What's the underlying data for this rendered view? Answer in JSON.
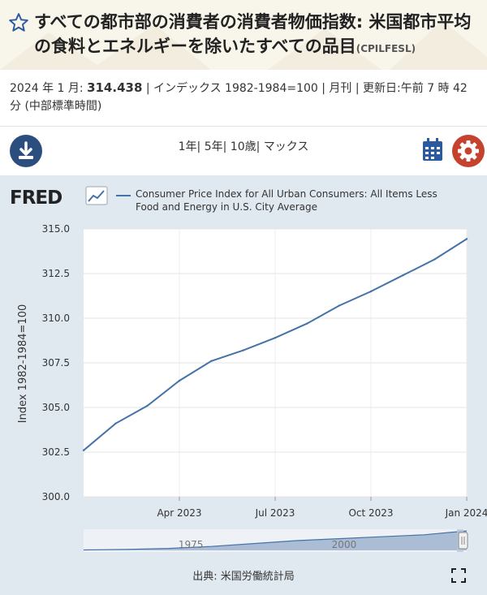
{
  "header": {
    "title": "すべての都市部の消費者の消費者物価指数: 米国都市平均の食料とエネルギーを除いたすべての品目",
    "series_id": "(CPILFESL)"
  },
  "meta": {
    "date_label": "2024 年 1 月:",
    "value": "314.438",
    "rest": "| インデックス 1982-1984=100 | 月刊 | 更新日:午前 7 時 42 分 (中部標準時間)"
  },
  "toolbar": {
    "ranges": [
      "1年",
      "5年",
      "10歳",
      "マックス"
    ],
    "separators": [
      "|",
      "|",
      "|"
    ]
  },
  "legend": {
    "logo": "FRED",
    "series_name": "Consumer Price Index for All Urban Consumers: All Items Less Food and Energy in U.S. City Average"
  },
  "source": "出典: 米国労働統計局",
  "colors": {
    "series": "#4572a7",
    "accent_blue": "#2c4e7f",
    "accent_red": "#c5422f"
  },
  "chart_data": {
    "type": "line",
    "title": "Consumer Price Index for All Urban Consumers: All Items Less Food and Energy in U.S. City Average",
    "ylabel": "Index 1982-1984=100",
    "xlabel": "",
    "ylim": [
      300.0,
      315.0
    ],
    "yticks": [
      "300.0",
      "302.5",
      "305.0",
      "307.5",
      "310.0",
      "312.5",
      "315.0"
    ],
    "ytick_values": [
      300.0,
      302.5,
      305.0,
      307.5,
      310.0,
      312.5,
      315.0
    ],
    "xticks": [
      "Apr 2023",
      "Jul 2023",
      "Oct 2023",
      "Jan 2024"
    ],
    "xtick_index": [
      3,
      6,
      9,
      12
    ],
    "x": [
      "Jan 2023",
      "Feb 2023",
      "Mar 2023",
      "Apr 2023",
      "May 2023",
      "Jun 2023",
      "Jul 2023",
      "Aug 2023",
      "Sep 2023",
      "Oct 2023",
      "Nov 2023",
      "Dec 2023",
      "Jan 2024"
    ],
    "series": [
      {
        "name": "CPILFESL",
        "values": [
          302.6,
          304.1,
          305.1,
          306.5,
          307.6,
          308.2,
          308.9,
          309.7,
          310.7,
          311.5,
          312.4,
          313.3,
          314.438
        ]
      }
    ],
    "navigator": {
      "labels": [
        "1975",
        "2000"
      ],
      "values": [
        0.02,
        0.05,
        0.1,
        0.2,
        0.35,
        0.5,
        0.6,
        0.7,
        0.8,
        1.0
      ]
    },
    "grid": true
  }
}
